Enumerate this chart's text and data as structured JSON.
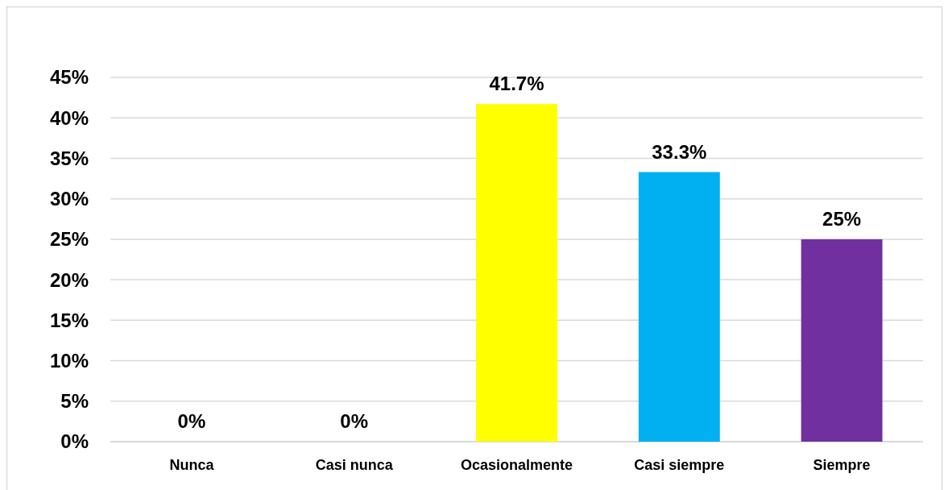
{
  "chart_data": {
    "type": "bar",
    "categories": [
      "Nunca",
      "Casi nunca",
      "Ocasionalmente",
      "Casi siempre",
      "Siempre"
    ],
    "values": [
      0,
      0,
      41.7,
      33.3,
      25
    ],
    "colors": [
      null,
      null,
      "#ffff00",
      "#00b0f0",
      "#7030a0"
    ],
    "value_labels": [
      "0%",
      "0%",
      "41.7%",
      "33.3%",
      "25%"
    ],
    "ylim": [
      0,
      45
    ],
    "yticks": [
      {
        "value": 0,
        "label": "0%"
      },
      {
        "value": 5,
        "label": "5%"
      },
      {
        "value": 10,
        "label": "10%"
      },
      {
        "value": 15,
        "label": "15%"
      },
      {
        "value": 20,
        "label": "20%"
      },
      {
        "value": 25,
        "label": "25%"
      },
      {
        "value": 30,
        "label": "30%"
      },
      {
        "value": 35,
        "label": "35%"
      },
      {
        "value": 40,
        "label": "40%"
      },
      {
        "value": 45,
        "label": "45%"
      }
    ],
    "grid": "y"
  }
}
